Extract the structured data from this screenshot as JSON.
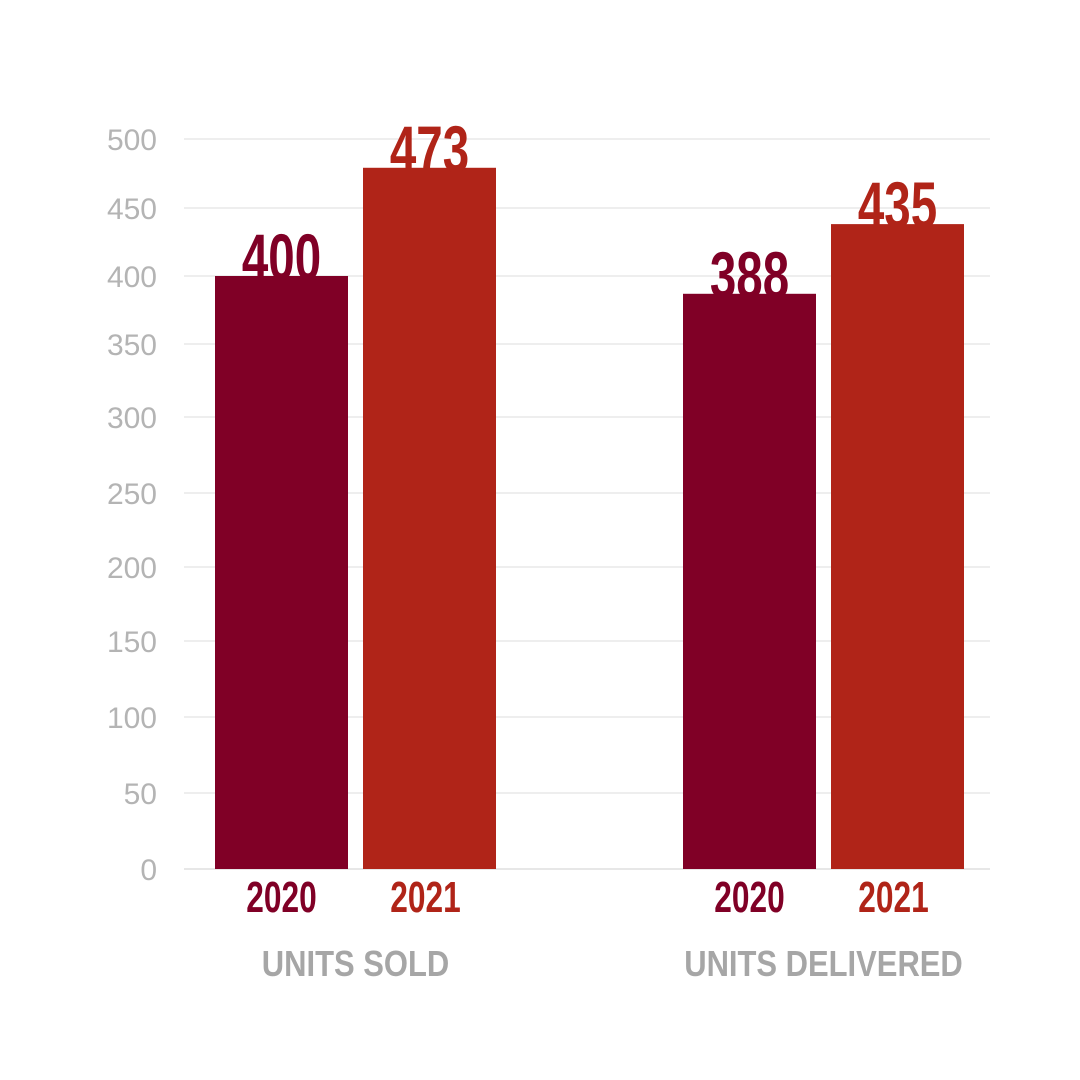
{
  "chart_data": {
    "type": "bar",
    "title": "",
    "xlabel": "",
    "ylabel": "",
    "ylim": [
      0,
      500
    ],
    "yticks": [
      0,
      50,
      100,
      150,
      200,
      250,
      300,
      350,
      400,
      450,
      500
    ],
    "grid": true,
    "categories": [
      "UNITS SOLD",
      "UNITS DELIVERED"
    ],
    "series": [
      {
        "name": "2020",
        "color": "#800026",
        "values": [
          400,
          388
        ]
      },
      {
        "name": "2021",
        "color": "#b02418",
        "values": [
          473,
          435
        ]
      }
    ]
  }
}
